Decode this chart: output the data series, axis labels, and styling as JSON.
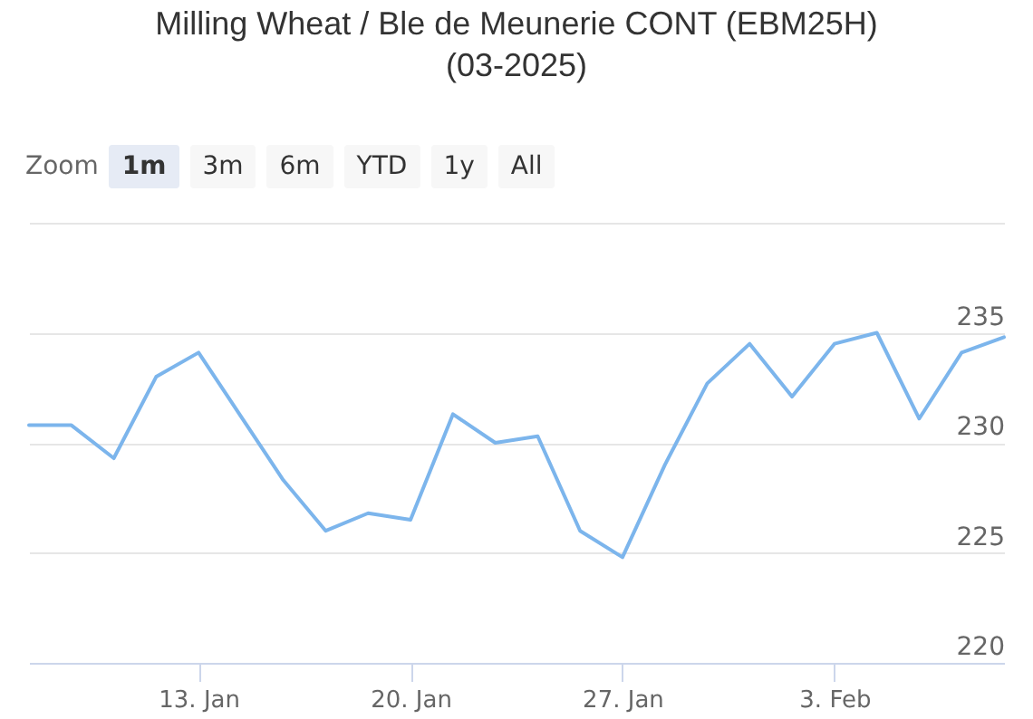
{
  "chart_data": {
    "type": "line",
    "title": "Milling Wheat / Ble de Meunerie CONT (EBM25H) (03-2025)",
    "annotations": [
      "Zoom",
      "1m",
      "3m",
      "6m",
      "YTD",
      "1y",
      "All"
    ],
    "categories": [
      null,
      null,
      null,
      null,
      "13. Jan",
      null,
      null,
      null,
      null,
      "20. Jan",
      null,
      null,
      null,
      null,
      "27. Jan",
      null,
      null,
      null,
      null,
      "3. Feb",
      null,
      null,
      null,
      null
    ],
    "series": [
      {
        "color": "#7cb5ec",
        "values": [
          230.8,
          230.8,
          229.3,
          233.0,
          234.1,
          231.2,
          228.3,
          226.0,
          226.8,
          226.5,
          231.3,
          230.0,
          230.3,
          226.0,
          224.8,
          229.0,
          232.7,
          234.5,
          232.1,
          234.5,
          235.0,
          231.1,
          234.1,
          234.8
        ]
      }
    ],
    "ylim": [
      220,
      240
    ],
    "yticks": [
      220,
      225,
      230,
      235,
      {
        "value": 240,
        "label": null
      }
    ],
    "grid": "y",
    "marker": "none",
    "line_style": "solid"
  }
}
